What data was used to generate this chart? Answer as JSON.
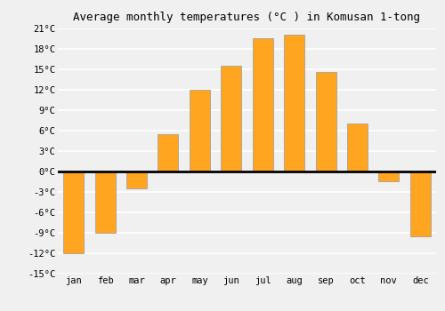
{
  "title": "Average monthly temperatures (°C ) in Komusan 1-tong",
  "month_labels": [
    "jan",
    "feb",
    "mar",
    "apr",
    "may",
    "jun",
    "jul",
    "aug",
    "sep",
    "oct",
    "nov",
    "dec"
  ],
  "values": [
    -12.0,
    -9.0,
    -2.5,
    5.5,
    12.0,
    15.5,
    19.5,
    20.0,
    14.5,
    7.0,
    -1.5,
    -9.5
  ],
  "bar_color": "#FFA520",
  "bar_edge_color": "#999999",
  "background_color": "#f0f0f0",
  "plot_bg_color": "#f0f0f0",
  "grid_color": "#ffffff",
  "ylim": [
    -15,
    21
  ],
  "yticks": [
    -15,
    -12,
    -9,
    -6,
    -3,
    0,
    3,
    6,
    9,
    12,
    15,
    18,
    21
  ],
  "ytick_labels": [
    "-15°C",
    "-12°C",
    "-9°C",
    "-6°C",
    "-3°C",
    "0°C",
    "3°C",
    "6°C",
    "9°C",
    "12°C",
    "15°C",
    "18°C",
    "21°C"
  ],
  "title_fontsize": 9,
  "tick_fontsize": 7.5,
  "font_family": "monospace",
  "bar_width": 0.65
}
